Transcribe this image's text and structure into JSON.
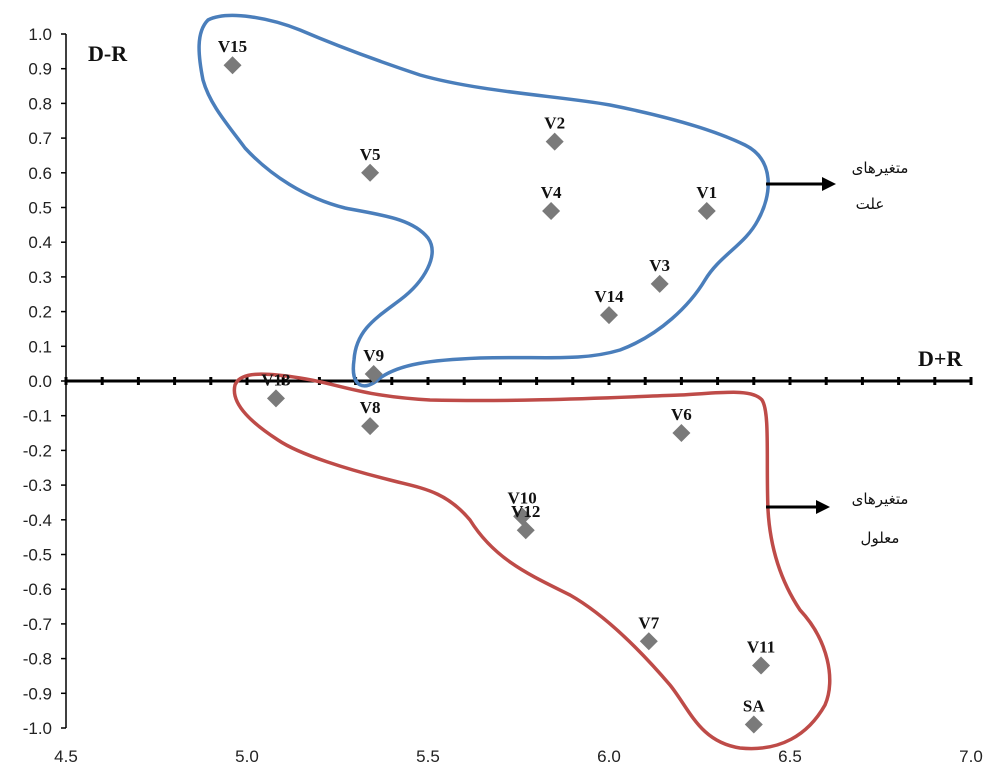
{
  "chart_data": {
    "type": "scatter",
    "xlabel": "D+R",
    "ylabel": "D-R",
    "xlim": [
      4.5,
      7.0
    ],
    "ylim": [
      -1.0,
      1.0
    ],
    "x_ticks": [
      "4.5",
      "5.0",
      "5.5",
      "6.0",
      "6.5",
      "7.0"
    ],
    "y_ticks": [
      "1.0",
      "0.9",
      "0.8",
      "0.7",
      "0.6",
      "0.5",
      "0.4",
      "0.3",
      "0.2",
      "0.1",
      "0.0",
      "-0.1",
      "-0.2",
      "-0.3",
      "-0.4",
      "-0.5",
      "-0.6",
      "-0.7",
      "-0.8",
      "-0.9",
      "-1.0"
    ],
    "grid": false,
    "marker_color": "#7a7a7a",
    "points": [
      {
        "label": "V15",
        "x": 4.96,
        "y": 0.91
      },
      {
        "label": "V5",
        "x": 5.34,
        "y": 0.6
      },
      {
        "label": "V2",
        "x": 5.85,
        "y": 0.69
      },
      {
        "label": "V4",
        "x": 5.84,
        "y": 0.49
      },
      {
        "label": "V1",
        "x": 6.27,
        "y": 0.49
      },
      {
        "label": "V3",
        "x": 6.14,
        "y": 0.28
      },
      {
        "label": "V14",
        "x": 6.0,
        "y": 0.19
      },
      {
        "label": "V9",
        "x": 5.35,
        "y": 0.02
      },
      {
        "label": "V13",
        "x": 5.08,
        "y": -0.05
      },
      {
        "label": "V8",
        "x": 5.34,
        "y": -0.13
      },
      {
        "label": "V6",
        "x": 6.2,
        "y": -0.15
      },
      {
        "label": "V10",
        "x": 5.76,
        "y": -0.39
      },
      {
        "label": "V12",
        "x": 5.77,
        "y": -0.43
      },
      {
        "label": "V7",
        "x": 6.11,
        "y": -0.75
      },
      {
        "label": "V11",
        "x": 6.42,
        "y": -0.82
      },
      {
        "label": "SA",
        "x": 6.4,
        "y": -0.99
      }
    ],
    "groups": [
      {
        "label_line1": "متغیرهای",
        "label_line2": "علت",
        "color": "#4a7ebb"
      },
      {
        "label_line1": "متغیرهای",
        "label_line2": "معلول",
        "color": "#be4b48"
      }
    ]
  }
}
